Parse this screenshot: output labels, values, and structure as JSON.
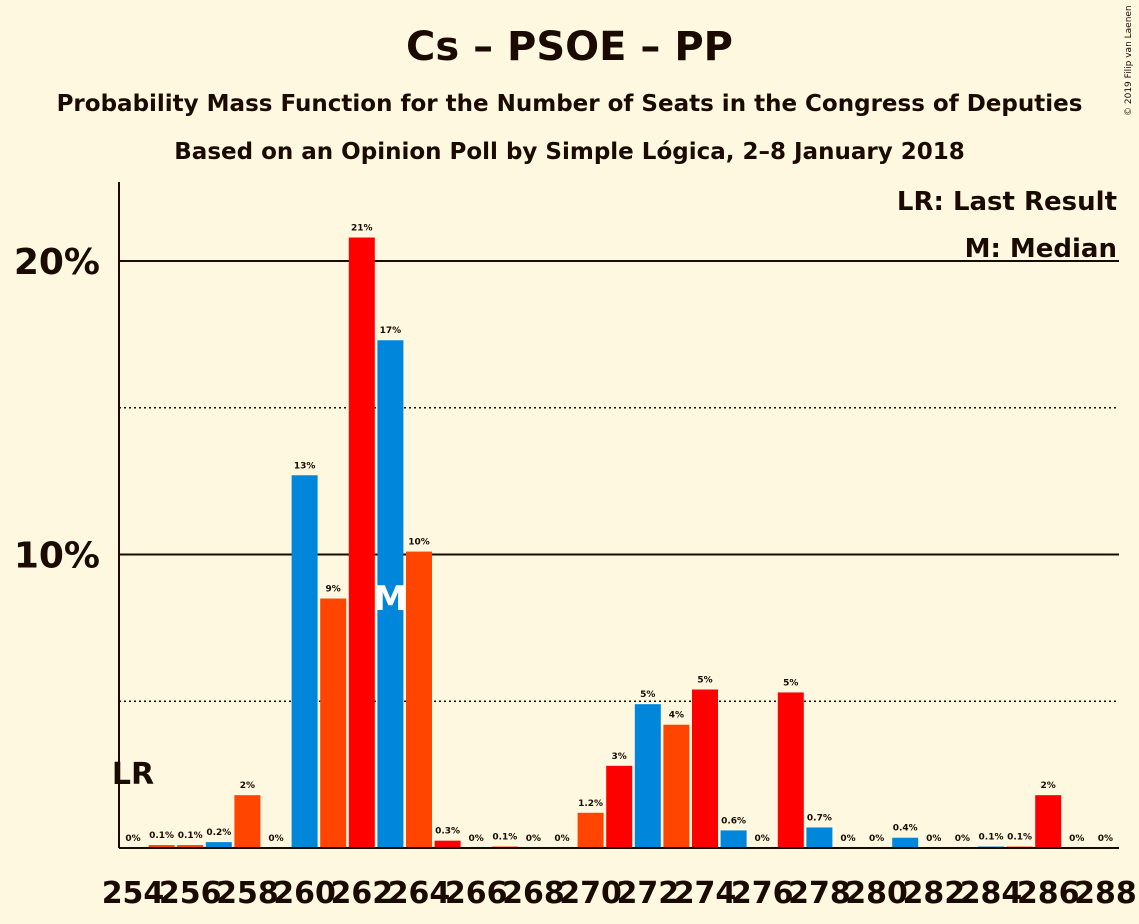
{
  "credit": "© 2019 Filip van Laenen",
  "chart_data": {
    "type": "bar",
    "title": "Cs – PSOE – PP",
    "subtitle": "Probability Mass Function for the Number of Seats in the Congress of Deputies",
    "subtitle2": "Based on an Opinion Poll by Simple Lógica, 2–8 January 2018",
    "xlabel": "",
    "ylabel": "",
    "ylim": [
      0,
      22.5
    ],
    "y_ticks": [
      {
        "value": 10,
        "label": "10%"
      },
      {
        "value": 20,
        "label": "20%"
      }
    ],
    "dotted_lines": [
      5,
      15
    ],
    "legend": {
      "lr": "LR: Last Result",
      "m": "M: Median",
      "placement": "top-right"
    },
    "lr_marker": {
      "label": "LR",
      "seat": 254
    },
    "median_marker": {
      "label": "M",
      "seat": 263
    },
    "x_tick_labels": [
      "254",
      "256",
      "258",
      "260",
      "262",
      "264",
      "266",
      "268",
      "270",
      "272",
      "274",
      "276",
      "278",
      "280",
      "282",
      "284",
      "286",
      "288"
    ],
    "x_tick_values": [
      254,
      256,
      258,
      260,
      262,
      264,
      266,
      268,
      270,
      272,
      274,
      276,
      278,
      280,
      282,
      284,
      286,
      288
    ],
    "colors": {
      "blue": "#0087dc",
      "orange": "#ff4500",
      "red": "#ff0000",
      "text": "#1a0a00",
      "background": "#fff8e1"
    },
    "bars": [
      {
        "seat": 254,
        "value": 0.0,
        "label": "0%",
        "color": "red"
      },
      {
        "seat": 255,
        "value": 0.1,
        "label": "0.1%",
        "color": "orange"
      },
      {
        "seat": 256,
        "value": 0.1,
        "label": "0.1%",
        "color": "orange"
      },
      {
        "seat": 257,
        "value": 0.2,
        "label": "0.2%",
        "color": "blue"
      },
      {
        "seat": 258,
        "value": 1.8,
        "label": "2%",
        "color": "orange"
      },
      {
        "seat": 259,
        "value": 0.0,
        "label": "0%",
        "color": "red"
      },
      {
        "seat": 260,
        "value": 12.7,
        "label": "13%",
        "color": "blue"
      },
      {
        "seat": 261,
        "value": 8.5,
        "label": "9%",
        "color": "orange"
      },
      {
        "seat": 262,
        "value": 20.8,
        "label": "21%",
        "color": "red"
      },
      {
        "seat": 263,
        "value": 17.3,
        "label": "17%",
        "color": "blue"
      },
      {
        "seat": 264,
        "value": 10.1,
        "label": "10%",
        "color": "orange"
      },
      {
        "seat": 265,
        "value": 0.25,
        "label": "0.3%",
        "color": "red"
      },
      {
        "seat": 266,
        "value": 0.0,
        "label": "0%",
        "color": "blue"
      },
      {
        "seat": 267,
        "value": 0.05,
        "label": "0.1%",
        "color": "orange"
      },
      {
        "seat": 268,
        "value": 0.0,
        "label": "0%",
        "color": "red"
      },
      {
        "seat": 269,
        "value": 0.0,
        "label": "0%",
        "color": "blue"
      },
      {
        "seat": 270,
        "value": 1.2,
        "label": "1.2%",
        "color": "orange"
      },
      {
        "seat": 271,
        "value": 2.8,
        "label": "3%",
        "color": "red"
      },
      {
        "seat": 272,
        "value": 4.9,
        "label": "5%",
        "color": "blue"
      },
      {
        "seat": 273,
        "value": 4.2,
        "label": "4%",
        "color": "orange"
      },
      {
        "seat": 274,
        "value": 5.4,
        "label": "5%",
        "color": "red"
      },
      {
        "seat": 275,
        "value": 0.6,
        "label": "0.6%",
        "color": "blue"
      },
      {
        "seat": 276,
        "value": 0.0,
        "label": "0%",
        "color": "orange"
      },
      {
        "seat": 277,
        "value": 5.3,
        "label": "5%",
        "color": "red"
      },
      {
        "seat": 278,
        "value": 0.7,
        "label": "0.7%",
        "color": "blue"
      },
      {
        "seat": 279,
        "value": 0.0,
        "label": "0%",
        "color": "orange"
      },
      {
        "seat": 280,
        "value": 0.0,
        "label": "0%",
        "color": "red"
      },
      {
        "seat": 281,
        "value": 0.35,
        "label": "0.4%",
        "color": "blue"
      },
      {
        "seat": 282,
        "value": 0.0,
        "label": "0%",
        "color": "orange"
      },
      {
        "seat": 283,
        "value": 0.0,
        "label": "0%",
        "color": "red"
      },
      {
        "seat": 284,
        "value": 0.05,
        "label": "0.1%",
        "color": "blue"
      },
      {
        "seat": 285,
        "value": 0.05,
        "label": "0.1%",
        "color": "orange"
      },
      {
        "seat": 286,
        "value": 1.8,
        "label": "2%",
        "color": "red"
      },
      {
        "seat": 287,
        "value": 0.0,
        "label": "0%",
        "color": "blue"
      },
      {
        "seat": 288,
        "value": 0.0,
        "label": "0%",
        "color": "orange"
      }
    ]
  }
}
